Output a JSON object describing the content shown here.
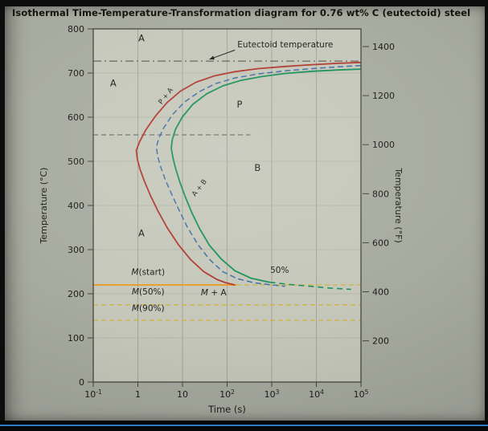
{
  "style": {
    "screen_bg": "#a8aba0",
    "plot_bg": "#c6c8bb",
    "grid_v_color": "#a3a698",
    "grid_h_color": "#b0b3a5",
    "axis_color": "#45453d",
    "text_color": "#1d1d1b",
    "accent_stripe": "#2e79c8",
    "red": "#b0392e",
    "green": "#1a9158",
    "blue": "#3f6fa8",
    "orange": "#e79d2f",
    "yellow": "#d2b23c"
  },
  "chart_data": {
    "type": "line",
    "title": "Isothermal Time-Temperature-Transformation diagram for 0.76 wt% C (eutectoid) steel",
    "xlabel": "Time (s)",
    "ylabel_left": "Temperature (°C)",
    "ylabel_right": "Temperature (°F)",
    "x_scale": "log",
    "x_range": [
      0.1,
      100000
    ],
    "y_range_c": [
      0,
      800
    ],
    "grid": true,
    "eutectoid_temperature_c": 727,
    "y_ticks_c": [
      0,
      100,
      200,
      300,
      400,
      500,
      600,
      700,
      800
    ],
    "y_ticks_f": [
      200,
      400,
      600,
      800,
      1000,
      1200,
      1400
    ],
    "x_ticks": [
      {
        "t": 0.1,
        "base": "10",
        "exp": "-1"
      },
      {
        "t": 1,
        "base": "1"
      },
      {
        "t": 10,
        "base": "10"
      },
      {
        "t": 100,
        "base": "10",
        "exp": "2"
      },
      {
        "t": 1000,
        "base": "10",
        "exp": "3"
      },
      {
        "t": 10000,
        "base": "10",
        "exp": "4"
      },
      {
        "t": 100000,
        "base": "10",
        "exp": "5"
      }
    ],
    "series": [
      {
        "name": "transformation-start-curve",
        "color": "#b0392e",
        "width": 1.8,
        "dash": null,
        "points": [
          [
            100000,
            724
          ],
          [
            30000,
            722
          ],
          [
            8000,
            719
          ],
          [
            2000,
            715
          ],
          [
            500,
            710
          ],
          [
            150,
            703
          ],
          [
            50,
            693
          ],
          [
            20,
            679
          ],
          [
            9,
            659
          ],
          [
            4.5,
            633
          ],
          [
            2.5,
            603
          ],
          [
            1.5,
            571
          ],
          [
            1.1,
            545
          ],
          [
            0.92,
            525
          ],
          [
            0.97,
            505
          ],
          [
            1.12,
            482
          ],
          [
            1.4,
            455
          ],
          [
            1.9,
            423
          ],
          [
            2.8,
            388
          ],
          [
            4.5,
            350
          ],
          [
            8,
            312
          ],
          [
            15,
            278
          ],
          [
            30,
            250
          ],
          [
            60,
            232
          ],
          [
            100,
            224
          ],
          [
            150,
            220
          ]
        ]
      },
      {
        "name": "fifty-percent-curve",
        "color": "#3f6fa8",
        "width": 1.5,
        "dash": "7,4",
        "points": [
          [
            100000,
            717
          ],
          [
            30000,
            714
          ],
          [
            8000,
            710
          ],
          [
            2000,
            705
          ],
          [
            500,
            698
          ],
          [
            150,
            689
          ],
          [
            55,
            676
          ],
          [
            24,
            658
          ],
          [
            11,
            634
          ],
          [
            6,
            606
          ],
          [
            3.8,
            576
          ],
          [
            2.9,
            551
          ],
          [
            2.6,
            532
          ],
          [
            2.8,
            510
          ],
          [
            3.3,
            485
          ],
          [
            4.2,
            456
          ],
          [
            5.8,
            424
          ],
          [
            8.5,
            388
          ],
          [
            13,
            350
          ],
          [
            22,
            312
          ],
          [
            40,
            278
          ],
          [
            80,
            250
          ],
          [
            170,
            234
          ],
          [
            400,
            225
          ],
          [
            1000,
            220
          ],
          [
            2000,
            217
          ]
        ]
      },
      {
        "name": "transformation-end-curve",
        "color": "#1a9158",
        "width": 1.8,
        "dash": null,
        "points": [
          [
            100000,
            709
          ],
          [
            30000,
            707
          ],
          [
            8000,
            704
          ],
          [
            2000,
            699
          ],
          [
            600,
            692
          ],
          [
            200,
            683
          ],
          [
            80,
            671
          ],
          [
            35,
            653
          ],
          [
            17,
            629
          ],
          [
            10,
            601
          ],
          [
            7,
            573
          ],
          [
            5.9,
            549
          ],
          [
            5.6,
            530
          ],
          [
            6.1,
            508
          ],
          [
            7.1,
            482
          ],
          [
            8.8,
            452
          ],
          [
            11.5,
            420
          ],
          [
            16,
            385
          ],
          [
            24,
            348
          ],
          [
            40,
            310
          ],
          [
            75,
            278
          ],
          [
            150,
            252
          ],
          [
            350,
            235
          ],
          [
            900,
            226
          ]
        ]
      },
      {
        "name": "transformation-end-extrapolated",
        "color": "#1a9158",
        "width": 1.6,
        "dash": "7,5",
        "points": [
          [
            900,
            226
          ],
          [
            2500,
            221
          ],
          [
            7000,
            217
          ],
          [
            20000,
            213
          ],
          [
            60000,
            210
          ]
        ]
      }
    ],
    "horizontal_lines": [
      {
        "name": "eutectoid-temperature-line",
        "T": 727,
        "t": [
          0.1,
          100000
        ],
        "style": "dashdot",
        "color": "#6a5f55",
        "width": 1.2
      },
      {
        "name": "nose-reference-line",
        "T": 560,
        "t": [
          0.1,
          330
        ],
        "style": "dashed",
        "color": "#5c5c52",
        "width": 1.1
      },
      {
        "name": "m-start-line",
        "T": 220,
        "t": [
          0.1,
          160
        ],
        "style": "solid",
        "color": "#e79d2f",
        "width": 2
      },
      {
        "name": "m-start-line-extension",
        "T": 220,
        "t": [
          160,
          100000
        ],
        "style": "dashed",
        "color": "#d2b23c",
        "width": 1.3
      },
      {
        "name": "m-50-line",
        "T": 175,
        "t": [
          0.1,
          100000
        ],
        "style": "dashed",
        "color": "#d2b23c",
        "width": 1.3
      },
      {
        "name": "m-90-line",
        "T": 140,
        "t": [
          0.1,
          100000
        ],
        "style": "dashed",
        "color": "#d2b23c",
        "width": 1.3
      }
    ],
    "annotations": [
      {
        "text": "A",
        "t": 1.2,
        "T": 772,
        "size": 11.5
      },
      {
        "text": "A",
        "t": 0.28,
        "T": 670,
        "size": 11.5
      },
      {
        "text": "A",
        "t": 1.2,
        "T": 330,
        "size": 11.5
      },
      {
        "text": "P",
        "t": 190,
        "T": 622,
        "size": 11.5
      },
      {
        "text": "B",
        "t": 480,
        "T": 478,
        "size": 11.5
      },
      {
        "text": "P + A",
        "t": 4.6,
        "T": 645,
        "size": 8.5,
        "rotate": -52
      },
      {
        "text": "A + B",
        "t": 26,
        "T": 437,
        "size": 8.5,
        "rotate": -52
      },
      {
        "text": "M(start)",
        "t": 1.7,
        "T": 243,
        "size": 10.5,
        "m_italic": true
      },
      {
        "text": "M(50%)",
        "t": 1.7,
        "T": 198,
        "size": 10.5,
        "m_italic": true
      },
      {
        "text": "M(90%)",
        "t": 1.7,
        "T": 161,
        "size": 10.5,
        "m_italic": true
      },
      {
        "text": "M + A",
        "t": 50,
        "T": 196,
        "size": 10.5,
        "m_italic": true
      },
      {
        "text": "50%",
        "t": 1500,
        "T": 247,
        "size": 10.5
      },
      {
        "text": "Eutectoid temperature",
        "t": 170,
        "T": 758,
        "size": 10.5,
        "anchor": "start",
        "arrow": {
          "from": [
            150,
            752
          ],
          "to": [
            40,
            731
          ]
        }
      }
    ]
  }
}
